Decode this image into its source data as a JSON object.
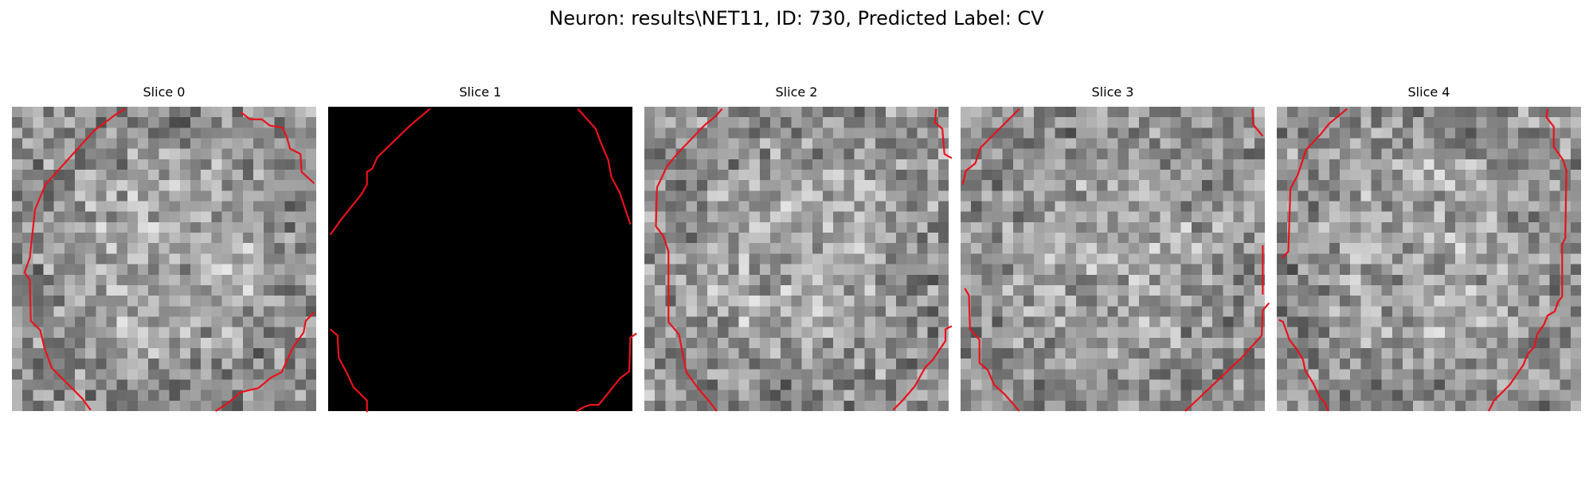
{
  "figure": {
    "title": "Neuron: results\\NET11, ID: 730, Predicted Label: CV"
  },
  "colors": {
    "contour": "#e8121b",
    "background": "#ffffff"
  },
  "slices": [
    {
      "label": "Slice 0",
      "image_style": "noisy-grayscale",
      "contour_segments": [
        [
          [
            10.8,
            0.2
          ],
          [
            9.8,
            0.8
          ],
          [
            7.8,
            2.3
          ],
          [
            3.2,
            7.4
          ],
          [
            2.2,
            9.8
          ],
          [
            1.7,
            14.4
          ],
          [
            1.2,
            15.8
          ],
          [
            1.7,
            16.5
          ],
          [
            1.8,
            20.4
          ],
          [
            2.7,
            21.3
          ],
          [
            3.1,
            23.0
          ],
          [
            3.8,
            24.9
          ],
          [
            6.7,
            27.8
          ],
          [
            7.5,
            28.9
          ]
        ],
        [
          [
            21.8,
            0.5
          ],
          [
            22.7,
            1.2
          ],
          [
            23.8,
            1.2
          ],
          [
            24.6,
            1.8
          ],
          [
            25.8,
            2.0
          ],
          [
            26.2,
            2.9
          ],
          [
            26.5,
            4.0
          ],
          [
            27.5,
            4.5
          ],
          [
            27.6,
            6.2
          ],
          [
            28.8,
            7.3
          ]
        ],
        [
          [
            19.4,
            29.0
          ],
          [
            20.5,
            28.3
          ],
          [
            21.8,
            27.2
          ],
          [
            23.5,
            26.8
          ],
          [
            24.7,
            25.8
          ],
          [
            25.7,
            25.3
          ],
          [
            26.8,
            22.9
          ],
          [
            27.8,
            21.5
          ],
          [
            28.0,
            20.4
          ],
          [
            28.8,
            19.6
          ]
        ]
      ]
    },
    {
      "label": "Slice 1",
      "image_style": "black",
      "contour_segments": [
        [
          [
            9.7,
            0.2
          ],
          [
            7.8,
            1.8
          ],
          [
            4.7,
            4.8
          ],
          [
            4.2,
            5.9
          ],
          [
            3.7,
            6.2
          ],
          [
            3.7,
            7.4
          ],
          [
            3.2,
            8.3
          ],
          [
            1.2,
            10.8
          ],
          [
            0.2,
            12.2
          ]
        ],
        [
          [
            23.8,
            0.2
          ],
          [
            25.5,
            2.1
          ],
          [
            25.9,
            3.2
          ],
          [
            26.7,
            5.1
          ],
          [
            27.0,
            6.7
          ],
          [
            27.8,
            8.2
          ],
          [
            28.8,
            11.2
          ]
        ],
        [
          [
            0.2,
            21.2
          ],
          [
            0.9,
            21.8
          ],
          [
            1.0,
            23.9
          ],
          [
            1.8,
            25.4
          ],
          [
            2.4,
            26.7
          ],
          [
            3.7,
            28.0
          ],
          [
            3.7,
            29.1
          ]
        ],
        [
          [
            23.7,
            29.0
          ],
          [
            24.4,
            28.6
          ],
          [
            25.0,
            28.4
          ],
          [
            25.8,
            28.4
          ],
          [
            27.8,
            25.9
          ],
          [
            28.7,
            25.2
          ],
          [
            28.8,
            22.0
          ],
          [
            29.4,
            21.6
          ]
        ]
      ]
    },
    {
      "label": "Slice 2",
      "image_style": "noisy-grayscale",
      "contour_segments": [
        [
          [
            7.4,
            0.2
          ],
          [
            6.8,
            0.9
          ],
          [
            5.8,
            1.7
          ],
          [
            3.3,
            4.3
          ],
          [
            2.2,
            5.6
          ],
          [
            1.2,
            7.7
          ],
          [
            1.1,
            11.4
          ],
          [
            1.8,
            12.3
          ],
          [
            2.3,
            13.8
          ],
          [
            2.3,
            20.5
          ],
          [
            3.3,
            21.7
          ],
          [
            4.0,
            25.3
          ],
          [
            5.1,
            26.8
          ],
          [
            6.2,
            28.1
          ],
          [
            6.9,
            29.0
          ]
        ],
        [
          [
            27.8,
            0.2
          ],
          [
            27.7,
            1.5
          ],
          [
            28.4,
            2.1
          ],
          [
            28.6,
            4.5
          ],
          [
            29.3,
            4.9
          ]
        ],
        [
          [
            23.7,
            28.9
          ],
          [
            24.6,
            28.0
          ],
          [
            25.8,
            26.6
          ],
          [
            26.4,
            25.5
          ],
          [
            26.8,
            24.8
          ],
          [
            27.5,
            24.1
          ],
          [
            28.7,
            22.3
          ],
          [
            28.7,
            21.2
          ],
          [
            29.3,
            20.9
          ]
        ]
      ]
    },
    {
      "label": "Slice 3",
      "image_style": "noisy-grayscale",
      "contour_segments": [
        [
          [
            5.6,
            0.2
          ],
          [
            1.9,
            3.9
          ],
          [
            1.4,
            5.4
          ],
          [
            0.5,
            6.1
          ],
          [
            0.2,
            7.4
          ]
        ],
        [
          [
            27.8,
            0.2
          ],
          [
            27.9,
            1.7
          ],
          [
            28.8,
            2.8
          ]
        ],
        [
          [
            0.4,
            17.3
          ],
          [
            0.8,
            18.0
          ],
          [
            0.9,
            21.2
          ],
          [
            1.8,
            22.2
          ],
          [
            1.8,
            24.4
          ],
          [
            2.6,
            25.1
          ],
          [
            3.2,
            26.5
          ],
          [
            4.2,
            27.4
          ],
          [
            5.6,
            29.0
          ]
        ],
        [
          [
            28.8,
            13.2
          ],
          [
            28.8,
            17.9
          ]
        ],
        [
          [
            21.4,
            29.0
          ],
          [
            22.9,
            27.6
          ],
          [
            26.8,
            23.9
          ],
          [
            28.7,
            21.8
          ],
          [
            28.8,
            19.4
          ],
          [
            29.4,
            18.7
          ]
        ]
      ]
    },
    {
      "label": "Slice 4",
      "image_style": "noisy-grayscale",
      "contour_segments": [
        [
          [
            6.7,
            0.2
          ],
          [
            5.0,
            1.6
          ],
          [
            4.2,
            2.6
          ],
          [
            2.8,
            4.1
          ],
          [
            2.0,
            6.5
          ],
          [
            1.3,
            7.8
          ],
          [
            1.1,
            13.8
          ],
          [
            0.5,
            14.4
          ]
        ],
        [
          [
            25.8,
            0.2
          ],
          [
            25.7,
            1.0
          ],
          [
            26.4,
            1.9
          ],
          [
            26.4,
            3.8
          ],
          [
            27.3,
            5.1
          ],
          [
            27.6,
            6.1
          ],
          [
            27.5,
            12.5
          ],
          [
            27.2,
            13.1
          ],
          [
            27.2,
            18.1
          ],
          [
            26.8,
            18.6
          ],
          [
            26.5,
            19.5
          ],
          [
            25.8,
            19.9
          ],
          [
            25.5,
            20.7
          ],
          [
            24.8,
            21.7
          ],
          [
            24.6,
            22.8
          ],
          [
            23.9,
            23.6
          ],
          [
            23.5,
            24.6
          ],
          [
            22.2,
            26.5
          ],
          [
            20.7,
            28.0
          ],
          [
            20.2,
            29.0
          ]
        ],
        [
          [
            0.2,
            20.3
          ],
          [
            0.6,
            20.5
          ],
          [
            1.2,
            22.2
          ],
          [
            1.9,
            23.1
          ],
          [
            2.5,
            24.1
          ],
          [
            2.7,
            25.1
          ],
          [
            3.5,
            26.4
          ],
          [
            4.1,
            27.7
          ],
          [
            4.6,
            28.2
          ],
          [
            4.9,
            29.0
          ]
        ]
      ]
    }
  ]
}
